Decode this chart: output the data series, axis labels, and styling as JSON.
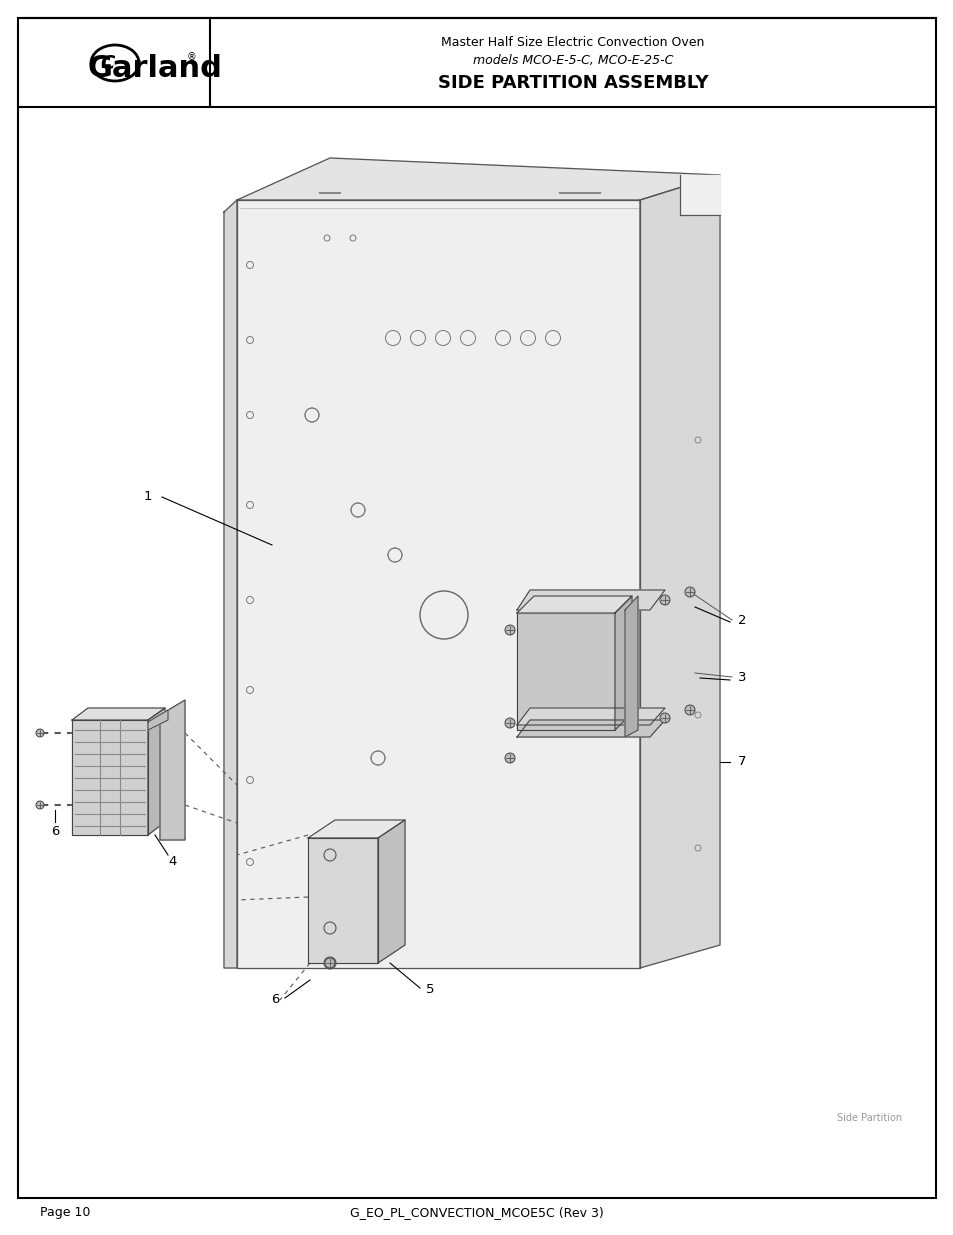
{
  "title_line1": "Master Half Size Electric Convection Oven",
  "title_line2": "models MCO-E-5-C, MCO-E-25-C",
  "title_line3": "SIDE PARTITION ASSEMBLY",
  "footer_left": "Page 10",
  "footer_center": "G_EO_PL_CONVECTION_MCOE5C (Rev 3)",
  "watermark": "Side Partition",
  "bg_color": "#ffffff",
  "border_color": "#000000",
  "panel_face": "#efefef",
  "panel_right": "#d8d8d8",
  "panel_top": "#e4e4e4",
  "panel_edge": "#555555",
  "comp_face": "#d0d0d0",
  "comp_dark": "#aaaaaa",
  "comp_top": "#e0e0e0"
}
